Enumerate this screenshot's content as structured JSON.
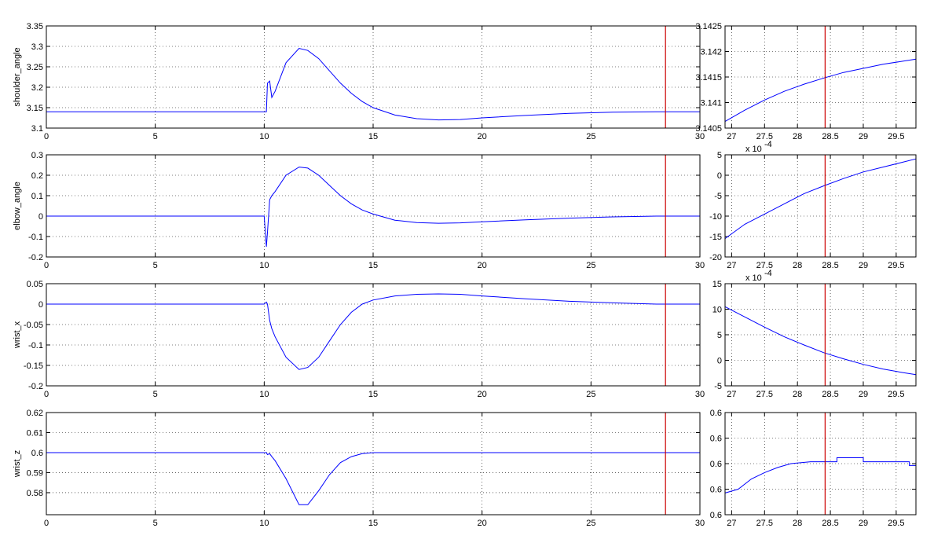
{
  "chart_data": [
    {
      "type": "line",
      "ylabel": "shoulder_angle",
      "color": "#0000ff",
      "x": [
        0,
        10,
        10.1,
        10.15,
        10.25,
        10.35,
        10.5,
        11,
        11.6,
        12,
        12.5,
        13,
        13.5,
        14,
        14.5,
        15,
        16,
        17,
        18,
        19,
        20,
        22,
        24,
        26,
        28,
        30
      ],
      "values": [
        3.14,
        3.14,
        3.14,
        3.21,
        3.215,
        3.175,
        3.19,
        3.26,
        3.295,
        3.29,
        3.27,
        3.24,
        3.21,
        3.185,
        3.165,
        3.15,
        3.132,
        3.123,
        3.12,
        3.121,
        3.125,
        3.131,
        3.136,
        3.139,
        3.14,
        3.14
      ],
      "xlim": [
        0,
        30
      ],
      "xticks": [
        0,
        5,
        10,
        15,
        20,
        25,
        30
      ],
      "ylim": [
        3.1,
        3.35
      ],
      "yticks": [
        3.1,
        3.15,
        3.2,
        3.25,
        3.3,
        3.35
      ],
      "grid": true,
      "marker_x": 28.42,
      "marker_color": "#cc0000"
    },
    {
      "type": "line",
      "color": "#0000ff",
      "x": [
        26.9,
        27.2,
        27.5,
        27.8,
        28.1,
        28.4,
        28.7,
        29,
        29.3,
        29.6,
        29.8
      ],
      "values": [
        3.14063,
        3.14085,
        3.14105,
        3.14122,
        3.14136,
        3.14148,
        3.14159,
        3.14167,
        3.14175,
        3.14181,
        3.14185
      ],
      "xlim": [
        26.9,
        29.8
      ],
      "xticks": [
        27,
        27.5,
        28,
        28.5,
        29,
        29.5
      ],
      "ylim": [
        3.1405,
        3.1425
      ],
      "yticks": [
        3.1405,
        3.141,
        3.1415,
        3.142,
        3.1425
      ],
      "grid": true,
      "marker_x": 28.42,
      "marker_color": "#cc0000"
    },
    {
      "type": "line",
      "ylabel": "elbow_angle",
      "color": "#0000ff",
      "x": [
        0,
        10,
        10.1,
        10.15,
        10.25,
        10.35,
        10.5,
        11,
        11.6,
        12,
        12.5,
        13,
        13.5,
        14,
        14.5,
        15,
        16,
        17,
        18,
        19,
        20,
        22,
        24,
        26,
        28,
        30
      ],
      "values": [
        0,
        0,
        -0.15,
        -0.08,
        0.08,
        0.1,
        0.12,
        0.2,
        0.24,
        0.235,
        0.2,
        0.15,
        0.1,
        0.06,
        0.03,
        0.01,
        -0.02,
        -0.032,
        -0.035,
        -0.033,
        -0.028,
        -0.018,
        -0.01,
        -0.004,
        0,
        0
      ],
      "xlim": [
        0,
        30
      ],
      "xticks": [
        0,
        5,
        10,
        15,
        20,
        25,
        30
      ],
      "ylim": [
        -0.2,
        0.3
      ],
      "yticks": [
        -0.2,
        -0.1,
        0,
        0.1,
        0.2,
        0.3
      ],
      "grid": true,
      "marker_x": 28.42,
      "marker_color": "#cc0000"
    },
    {
      "type": "line",
      "color": "#0000ff",
      "multiplier_base": "x 10",
      "multiplier_exp": "-4",
      "x": [
        26.9,
        27.2,
        27.5,
        27.8,
        28.1,
        28.4,
        28.7,
        29,
        29.3,
        29.6,
        29.8
      ],
      "values": [
        -15.5,
        -12,
        -9.5,
        -7,
        -4.5,
        -2.6,
        -0.8,
        0.8,
        2,
        3.2,
        4
      ],
      "xlim": [
        26.9,
        29.8
      ],
      "xticks": [
        27,
        27.5,
        28,
        28.5,
        29,
        29.5
      ],
      "ylim": [
        -20,
        5
      ],
      "yticks": [
        -20,
        -15,
        -10,
        -5,
        0,
        5
      ],
      "grid": true,
      "marker_x": 28.42,
      "marker_color": "#cc0000"
    },
    {
      "type": "line",
      "ylabel": "wrist_x",
      "color": "#0000ff",
      "x": [
        0,
        10,
        10.1,
        10.15,
        10.25,
        10.35,
        10.5,
        11,
        11.6,
        12,
        12.5,
        13,
        13.5,
        14,
        14.5,
        15,
        16,
        17,
        18,
        19,
        20,
        22,
        24,
        26,
        28,
        30
      ],
      "values": [
        0,
        0,
        0.005,
        0,
        -0.04,
        -0.06,
        -0.08,
        -0.13,
        -0.16,
        -0.155,
        -0.13,
        -0.09,
        -0.05,
        -0.02,
        0,
        0.01,
        0.02,
        0.024,
        0.025,
        0.024,
        0.02,
        0.013,
        0.007,
        0.003,
        0,
        0
      ],
      "xlim": [
        0,
        30
      ],
      "xticks": [
        0,
        5,
        10,
        15,
        20,
        25,
        30
      ],
      "ylim": [
        -0.2,
        0.05
      ],
      "yticks": [
        -0.2,
        -0.15,
        -0.1,
        -0.05,
        0,
        0.05
      ],
      "grid": true,
      "marker_x": 28.42,
      "marker_color": "#cc0000"
    },
    {
      "type": "line",
      "color": "#0000ff",
      "multiplier_base": "x 10",
      "multiplier_exp": "-4",
      "x": [
        26.9,
        27.2,
        27.5,
        27.8,
        28.1,
        28.4,
        28.7,
        29,
        29.3,
        29.6,
        29.8
      ],
      "values": [
        10.5,
        8.5,
        6.5,
        4.6,
        3,
        1.5,
        0.3,
        -0.8,
        -1.7,
        -2.4,
        -2.8
      ],
      "xlim": [
        26.9,
        29.8
      ],
      "xticks": [
        27,
        27.5,
        28,
        28.5,
        29,
        29.5
      ],
      "ylim": [
        -5,
        15
      ],
      "yticks": [
        -5,
        0,
        5,
        10,
        15
      ],
      "grid": true,
      "marker_x": 28.42,
      "marker_color": "#cc0000"
    },
    {
      "type": "line",
      "ylabel": "wrist_z",
      "color": "#0000ff",
      "x": [
        0,
        10,
        10.1,
        10.15,
        10.25,
        10.35,
        10.5,
        11,
        11.6,
        12,
        12.5,
        13,
        13.5,
        14,
        14.5,
        15,
        16,
        18,
        20,
        22,
        24,
        26,
        28,
        30
      ],
      "values": [
        0.6,
        0.6,
        0.6,
        0.599,
        0.5995,
        0.598,
        0.596,
        0.587,
        0.574,
        0.574,
        0.581,
        0.589,
        0.595,
        0.598,
        0.5995,
        0.6,
        0.6,
        0.6,
        0.6,
        0.6,
        0.6,
        0.6,
        0.6,
        0.6
      ],
      "xlim": [
        0,
        30
      ],
      "xticks": [
        0,
        5,
        10,
        15,
        20,
        25,
        30
      ],
      "ylim": [
        0.569,
        0.62
      ],
      "yticks": [
        0.58,
        0.59,
        0.6,
        0.61,
        0.62
      ],
      "grid": true,
      "marker_x": 28.42,
      "marker_color": "#cc0000"
    },
    {
      "type": "line",
      "color": "#0000ff",
      "x": [
        26.9,
        27.1,
        27.3,
        27.5,
        27.7,
        27.9,
        28.2,
        28.6,
        28.6,
        29,
        29,
        29.7,
        29.7,
        29.8
      ],
      "values": [
        0.599977,
        0.59998,
        0.599988,
        0.599993,
        0.599997,
        0.6,
        0.6000015,
        0.6000015,
        0.6000046,
        0.6000046,
        0.6000015,
        0.6000015,
        0.5999985,
        0.5999985
      ],
      "xlim": [
        26.9,
        29.8
      ],
      "xticks": [
        27,
        27.5,
        28,
        28.5,
        29,
        29.5
      ],
      "ylim": [
        0.59996,
        0.60004
      ],
      "yticks": [
        {
          "value": 0.59996,
          "label": "0.6"
        },
        {
          "value": 0.59998,
          "label": "0.6"
        },
        {
          "value": 0.6,
          "label": "0.6"
        },
        {
          "value": 0.60002,
          "label": "0.6"
        },
        {
          "value": 0.60004,
          "label": "0.6"
        }
      ],
      "grid": true,
      "marker_x": 28.42,
      "marker_color": "#cc0000"
    }
  ]
}
